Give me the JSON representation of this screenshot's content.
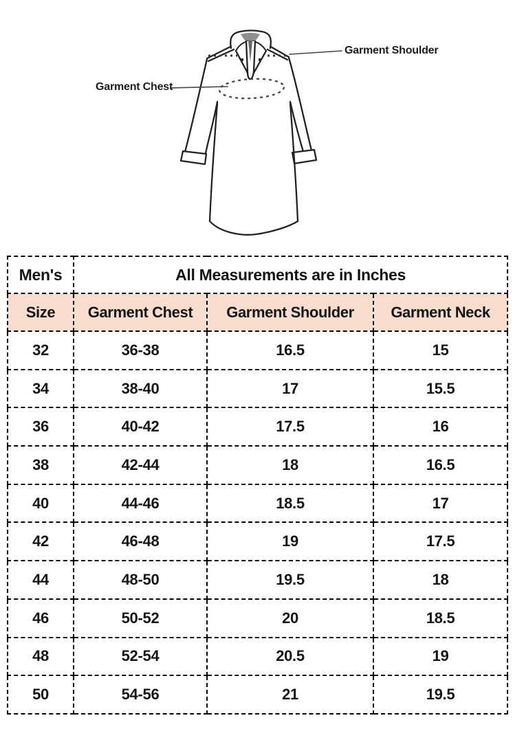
{
  "diagram": {
    "shoulder_label": "Garment Shoulder",
    "chest_label": "Garment Chest"
  },
  "table": {
    "category_label": "Men's",
    "title": "All Measurements are in Inches",
    "columns": [
      "Size",
      "Garment Chest",
      "Garment Shoulder",
      "Garment Neck"
    ],
    "rows": [
      [
        "32",
        "36-38",
        "16.5",
        "15"
      ],
      [
        "34",
        "38-40",
        "17",
        "15.5"
      ],
      [
        "36",
        "40-42",
        "17.5",
        "16"
      ],
      [
        "38",
        "42-44",
        "18",
        "16.5"
      ],
      [
        "40",
        "44-46",
        "18.5",
        "17"
      ],
      [
        "42",
        "46-48",
        "19",
        "17.5"
      ],
      [
        "44",
        "48-50",
        "19.5",
        "18"
      ],
      [
        "46",
        "50-52",
        "20",
        "18.5"
      ],
      [
        "48",
        "52-54",
        "20.5",
        "19"
      ],
      [
        "50",
        "54-56",
        "21",
        "19.5"
      ]
    ],
    "colors": {
      "highlight_yellow": "#ffff00",
      "header_peach": "#f8dccd",
      "border": "#000000"
    }
  }
}
